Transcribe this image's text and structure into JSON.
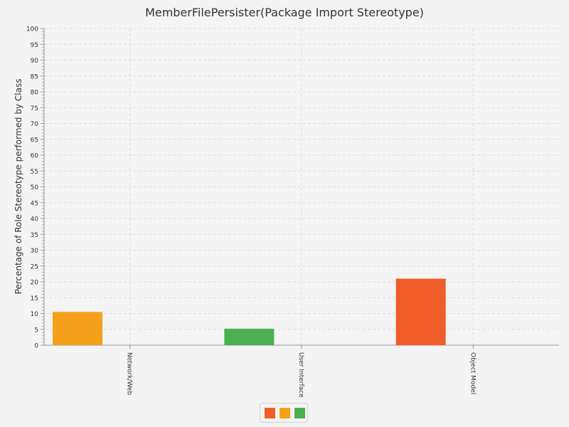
{
  "chart_data": {
    "type": "bar",
    "title": "MemberFilePersister(Package Import Stereotype)",
    "ylabel": "Percentage of Role Stereotype performed by Class",
    "xlabel": "",
    "ylim": [
      0,
      100
    ],
    "y_ticks": [
      "0",
      "5",
      "10",
      "15",
      "20",
      "25",
      "30",
      "35",
      "40",
      "45",
      "50",
      "55",
      "60",
      "65",
      "70",
      "75",
      "80",
      "85",
      "90",
      "95",
      "100"
    ],
    "categories": [
      "Network/Web",
      "User Interface",
      "Object Model"
    ],
    "series": [
      {
        "color": "#f05c2a",
        "values": [
          0,
          0,
          21
        ]
      },
      {
        "color": "#f5a11b",
        "values": [
          10.5,
          0,
          0
        ]
      },
      {
        "color": "#4caf50",
        "values": [
          0,
          5.2,
          0
        ]
      }
    ],
    "grid": true,
    "legend_position": "bottom-center"
  }
}
